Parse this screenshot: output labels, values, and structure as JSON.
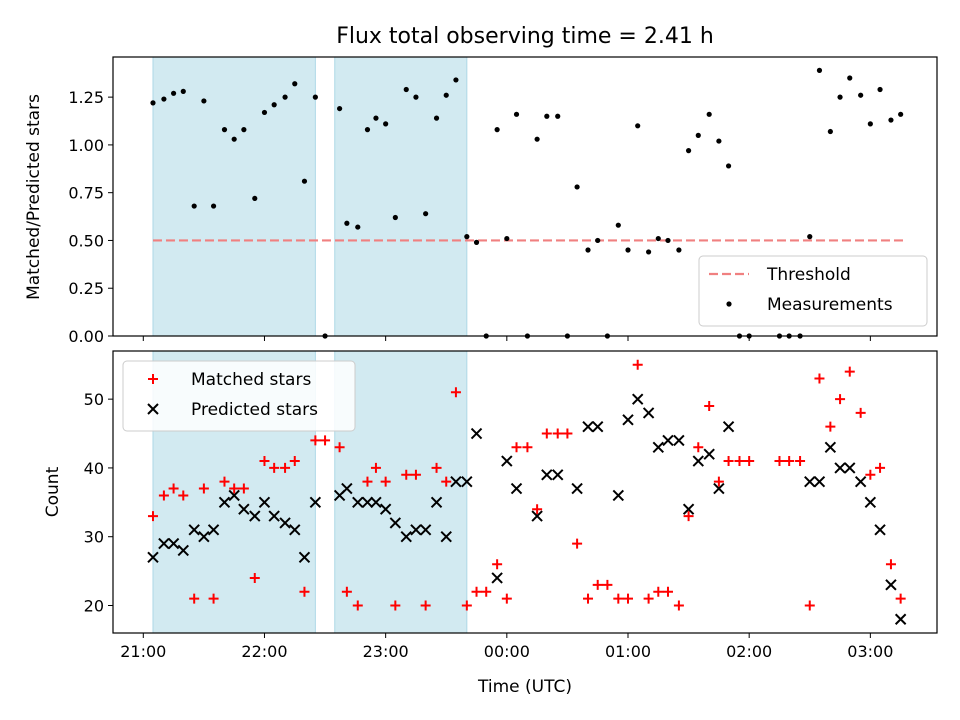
{
  "chart_data": {
    "type": "scatter",
    "title": "Flux total observing time = 2.41 h",
    "xlabel": "Time (UTC)",
    "x_unit": "hours UTC (values past 24 are after midnight)",
    "x_ticks": [
      {
        "value": 21,
        "label": "21:00"
      },
      {
        "value": 22,
        "label": "22:00"
      },
      {
        "value": 23,
        "label": "23:00"
      },
      {
        "value": 24,
        "label": "00:00"
      },
      {
        "value": 25,
        "label": "01:00"
      },
      {
        "value": 26,
        "label": "02:00"
      },
      {
        "value": 27,
        "label": "03:00"
      }
    ],
    "xlim": [
      20.75,
      27.55
    ],
    "shaded_intervals": [
      [
        21.08,
        22.42
      ],
      [
        22.58,
        23.67
      ]
    ],
    "shade_color": "#add8e6",
    "panels": [
      {
        "id": "ratio",
        "ylabel": "Matched/Predicted stars",
        "ylim": [
          0,
          1.46
        ],
        "y_ticks": [
          {
            "value": 0,
            "label": "0.00"
          },
          {
            "value": 0.25,
            "label": "0.25"
          },
          {
            "value": 0.5,
            "label": "0.50"
          },
          {
            "value": 0.75,
            "label": "0.75"
          },
          {
            "value": 1.0,
            "label": "1.00"
          },
          {
            "value": 1.25,
            "label": "1.25"
          }
        ],
        "legend_position": "lower-right",
        "threshold": {
          "name": "Threshold",
          "value": 0.5,
          "x_range": [
            21.08,
            27.27
          ],
          "color": "#f08080",
          "style": "dashed"
        },
        "series": [
          {
            "name": "Measurements",
            "marker": "dot",
            "color": "#000000",
            "points": [
              [
                21.08,
                1.22
              ],
              [
                21.17,
                1.24
              ],
              [
                21.25,
                1.27
              ],
              [
                21.33,
                1.28
              ],
              [
                21.42,
                0.68
              ],
              [
                21.5,
                1.23
              ],
              [
                21.58,
                0.68
              ],
              [
                21.67,
                1.08
              ],
              [
                21.75,
                1.03
              ],
              [
                21.83,
                1.08
              ],
              [
                21.92,
                0.72
              ],
              [
                22.0,
                1.17
              ],
              [
                22.08,
                1.21
              ],
              [
                22.17,
                1.25
              ],
              [
                22.25,
                1.32
              ],
              [
                22.33,
                0.81
              ],
              [
                22.42,
                1.25
              ],
              [
                22.5,
                0.0
              ],
              [
                22.62,
                1.19
              ],
              [
                22.68,
                0.59
              ],
              [
                22.77,
                0.57
              ],
              [
                22.85,
                1.08
              ],
              [
                22.92,
                1.14
              ],
              [
                23.0,
                1.11
              ],
              [
                23.08,
                0.62
              ],
              [
                23.17,
                1.29
              ],
              [
                23.25,
                1.25
              ],
              [
                23.33,
                0.64
              ],
              [
                23.42,
                1.14
              ],
              [
                23.5,
                1.26
              ],
              [
                23.58,
                1.34
              ],
              [
                23.67,
                0.52
              ],
              [
                23.75,
                0.49
              ],
              [
                23.83,
                0.0
              ],
              [
                23.92,
                1.08
              ],
              [
                24.0,
                0.51
              ],
              [
                24.08,
                1.16
              ],
              [
                24.17,
                0.0
              ],
              [
                24.25,
                1.03
              ],
              [
                24.33,
                1.15
              ],
              [
                24.42,
                1.15
              ],
              [
                24.5,
                0.0
              ],
              [
                24.58,
                0.78
              ],
              [
                24.67,
                0.45
              ],
              [
                24.75,
                0.5
              ],
              [
                24.83,
                0.0
              ],
              [
                24.92,
                0.58
              ],
              [
                25.0,
                0.45
              ],
              [
                25.08,
                1.1
              ],
              [
                25.17,
                0.44
              ],
              [
                25.25,
                0.51
              ],
              [
                25.33,
                0.5
              ],
              [
                25.42,
                0.45
              ],
              [
                25.5,
                0.97
              ],
              [
                25.58,
                1.05
              ],
              [
                25.67,
                1.16
              ],
              [
                25.75,
                1.02
              ],
              [
                25.83,
                0.89
              ],
              [
                25.92,
                0.0
              ],
              [
                26.0,
                0.0
              ],
              [
                26.25,
                0.0
              ],
              [
                26.33,
                0.0
              ],
              [
                26.42,
                0.0
              ],
              [
                26.5,
                0.52
              ],
              [
                26.58,
                1.39
              ],
              [
                26.67,
                1.07
              ],
              [
                26.75,
                1.25
              ],
              [
                26.83,
                1.35
              ],
              [
                26.92,
                1.26
              ],
              [
                27.0,
                1.11
              ],
              [
                27.08,
                1.29
              ],
              [
                27.17,
                1.13
              ],
              [
                27.25,
                1.16
              ]
            ]
          }
        ]
      },
      {
        "id": "count",
        "ylabel": "Count",
        "ylim": [
          16,
          57
        ],
        "y_ticks": [
          {
            "value": 20,
            "label": "20"
          },
          {
            "value": 30,
            "label": "30"
          },
          {
            "value": 40,
            "label": "40"
          },
          {
            "value": 50,
            "label": "50"
          }
        ],
        "legend_position": "upper-left",
        "series": [
          {
            "name": "Matched stars",
            "marker": "plus",
            "color": "#ff0000",
            "points": [
              [
                21.08,
                33
              ],
              [
                21.17,
                36
              ],
              [
                21.25,
                37
              ],
              [
                21.33,
                36
              ],
              [
                21.42,
                21
              ],
              [
                21.5,
                37
              ],
              [
                21.58,
                21
              ],
              [
                21.67,
                38
              ],
              [
                21.75,
                37
              ],
              [
                21.83,
                37
              ],
              [
                21.92,
                24
              ],
              [
                22.0,
                41
              ],
              [
                22.08,
                40
              ],
              [
                22.17,
                40
              ],
              [
                22.25,
                41
              ],
              [
                22.33,
                22
              ],
              [
                22.42,
                44
              ],
              [
                22.5,
                44
              ],
              [
                22.62,
                43
              ],
              [
                22.68,
                22
              ],
              [
                22.77,
                20
              ],
              [
                22.85,
                38
              ],
              [
                22.92,
                40
              ],
              [
                23.0,
                38
              ],
              [
                23.08,
                20
              ],
              [
                23.17,
                39
              ],
              [
                23.25,
                39
              ],
              [
                23.33,
                20
              ],
              [
                23.42,
                40
              ],
              [
                23.5,
                38
              ],
              [
                23.58,
                51
              ],
              [
                23.67,
                20
              ],
              [
                23.75,
                22
              ],
              [
                23.83,
                22
              ],
              [
                23.92,
                26
              ],
              [
                24.0,
                21
              ],
              [
                24.08,
                43
              ],
              [
                24.17,
                43
              ],
              [
                24.25,
                34
              ],
              [
                24.33,
                45
              ],
              [
                24.42,
                45
              ],
              [
                24.5,
                45
              ],
              [
                24.58,
                29
              ],
              [
                24.67,
                21
              ],
              [
                24.75,
                23
              ],
              [
                24.83,
                23
              ],
              [
                24.92,
                21
              ],
              [
                25.0,
                21
              ],
              [
                25.08,
                55
              ],
              [
                25.17,
                21
              ],
              [
                25.25,
                22
              ],
              [
                25.33,
                22
              ],
              [
                25.42,
                20
              ],
              [
                25.5,
                33
              ],
              [
                25.58,
                43
              ],
              [
                25.67,
                49
              ],
              [
                25.75,
                38
              ],
              [
                25.83,
                41
              ],
              [
                25.92,
                41
              ],
              [
                26.0,
                41
              ],
              [
                26.25,
                41
              ],
              [
                26.33,
                41
              ],
              [
                26.42,
                41
              ],
              [
                26.5,
                20
              ],
              [
                26.58,
                53
              ],
              [
                26.67,
                46
              ],
              [
                26.75,
                50
              ],
              [
                26.83,
                54
              ],
              [
                26.92,
                48
              ],
              [
                27.0,
                39
              ],
              [
                27.08,
                40
              ],
              [
                27.17,
                26
              ],
              [
                27.25,
                21
              ]
            ]
          },
          {
            "name": "Predicted stars",
            "marker": "x",
            "color": "#000000",
            "points": [
              [
                21.08,
                27
              ],
              [
                21.17,
                29
              ],
              [
                21.25,
                29
              ],
              [
                21.33,
                28
              ],
              [
                21.42,
                31
              ],
              [
                21.5,
                30
              ],
              [
                21.58,
                31
              ],
              [
                21.67,
                35
              ],
              [
                21.75,
                36
              ],
              [
                21.83,
                34
              ],
              [
                21.92,
                33
              ],
              [
                22.0,
                35
              ],
              [
                22.08,
                33
              ],
              [
                22.17,
                32
              ],
              [
                22.25,
                31
              ],
              [
                22.33,
                27
              ],
              [
                22.42,
                35
              ],
              [
                22.62,
                36
              ],
              [
                22.68,
                37
              ],
              [
                22.77,
                35
              ],
              [
                22.85,
                35
              ],
              [
                22.92,
                35
              ],
              [
                23.0,
                34
              ],
              [
                23.08,
                32
              ],
              [
                23.17,
                30
              ],
              [
                23.25,
                31
              ],
              [
                23.33,
                31
              ],
              [
                23.42,
                35
              ],
              [
                23.5,
                30
              ],
              [
                23.58,
                38
              ],
              [
                23.67,
                38
              ],
              [
                23.75,
                45
              ],
              [
                23.92,
                24
              ],
              [
                24.0,
                41
              ],
              [
                24.08,
                37
              ],
              [
                24.25,
                33
              ],
              [
                24.33,
                39
              ],
              [
                24.42,
                39
              ],
              [
                24.58,
                37
              ],
              [
                24.67,
                46
              ],
              [
                24.75,
                46
              ],
              [
                24.92,
                36
              ],
              [
                25.0,
                47
              ],
              [
                25.08,
                50
              ],
              [
                25.17,
                48
              ],
              [
                25.25,
                43
              ],
              [
                25.33,
                44
              ],
              [
                25.42,
                44
              ],
              [
                25.5,
                34
              ],
              [
                25.58,
                41
              ],
              [
                25.67,
                42
              ],
              [
                25.75,
                37
              ],
              [
                25.83,
                46
              ],
              [
                26.5,
                38
              ],
              [
                26.58,
                38
              ],
              [
                26.67,
                43
              ],
              [
                26.75,
                40
              ],
              [
                26.83,
                40
              ],
              [
                26.92,
                38
              ],
              [
                27.0,
                35
              ],
              [
                27.08,
                31
              ],
              [
                27.17,
                23
              ],
              [
                27.25,
                18
              ]
            ]
          }
        ]
      }
    ]
  }
}
